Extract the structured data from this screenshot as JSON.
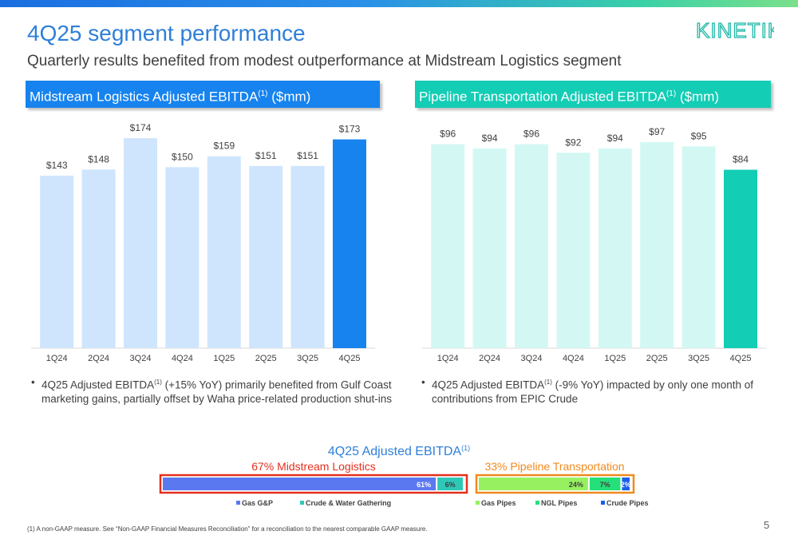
{
  "title": "4Q25 segment performance",
  "subtitle": "Quarterly results benefited from modest outperformance at Midstream Logistics segment",
  "logo": {
    "text": "KINETIK",
    "color": "#1fb8a8"
  },
  "left_header": {
    "main": "Midstream Logistics Adjusted EBITDA",
    "sup": "(1)",
    "unit": " ($mm)"
  },
  "right_header": {
    "main": "Pipeline Transportation Adjusted EBITDA",
    "sup": "(1)",
    "unit": " ($mm)"
  },
  "left_bullet": {
    "line1_a": "4Q25 Adjusted EBITDA",
    "sup": "(1)",
    "line1_b": " (+15% YoY) primarily benefited from Gulf Coast",
    "line2": "marketing gains, partially offset by Waha price-related production shut-ins"
  },
  "right_bullet": {
    "line1_a": "4Q25 Adjusted EBITDA",
    "sup": "(1)",
    "line1_b": " (-9% YoY) impacted by only one month of",
    "line2": "contributions from EPIC Crude"
  },
  "footnote": "(1)    A non-GAAP measure. See “Non-GAAP Financial Measures Reconciliation” for a reconciliation to the nearest comparable GAAP measure.",
  "page_number": "5",
  "chart_data": [
    {
      "type": "bar",
      "categories": [
        "1Q24",
        "2Q24",
        "3Q24",
        "4Q24",
        "1Q25",
        "2Q25",
        "3Q25",
        "4Q25"
      ],
      "values": [
        143,
        148,
        174,
        150,
        159,
        151,
        151,
        173
      ],
      "labels": [
        "$143",
        "$148",
        "$174",
        "$150",
        "$159",
        "$151",
        "$151",
        "$173"
      ],
      "colors": {
        "bar": "#cfe5fd",
        "highlight": "#1783ee"
      },
      "highlight_index": 7,
      "ylim": [
        0,
        180
      ]
    },
    {
      "type": "bar",
      "categories": [
        "1Q24",
        "2Q24",
        "3Q24",
        "4Q24",
        "1Q25",
        "2Q25",
        "3Q25",
        "4Q25"
      ],
      "values": [
        96,
        94,
        96,
        92,
        94,
        97,
        95,
        84
      ],
      "labels": [
        "$96",
        "$94",
        "$96",
        "$92",
        "$94",
        "$97",
        "$95",
        "$84"
      ],
      "colors": {
        "bar": "#d3f8f3",
        "highlight": "#13cdb5"
      },
      "highlight_index": 7,
      "ylim": [
        0,
        100
      ]
    },
    {
      "type": "bar",
      "title": "4Q25 Adjusted EBITDA",
      "title_sup": "(1)",
      "groups": [
        {
          "label": "67% Midstream Logistics",
          "color": "#e3301e"
        },
        {
          "label": "33% Pipeline Transportation",
          "color": "#f08a1e"
        }
      ],
      "segments": [
        {
          "name": "Gas G&P",
          "value": 61,
          "label": "61%",
          "color": "#5a78f0",
          "group": 0
        },
        {
          "name": "Crude & Water Gathering",
          "value": 6,
          "label": "6%",
          "color": "#2ec8b8",
          "group": 0
        },
        {
          "name": "Gas Pipes",
          "value": 24,
          "label": "24%",
          "color": "#96f060",
          "group": 1
        },
        {
          "name": "NGL Pipes",
          "value": 7,
          "label": "7%",
          "color": "#25e07a",
          "group": 1
        },
        {
          "name": "Crude Pipes",
          "value": 2,
          "label": "2%",
          "color": "#1a5ef0",
          "group": 1
        }
      ]
    }
  ]
}
